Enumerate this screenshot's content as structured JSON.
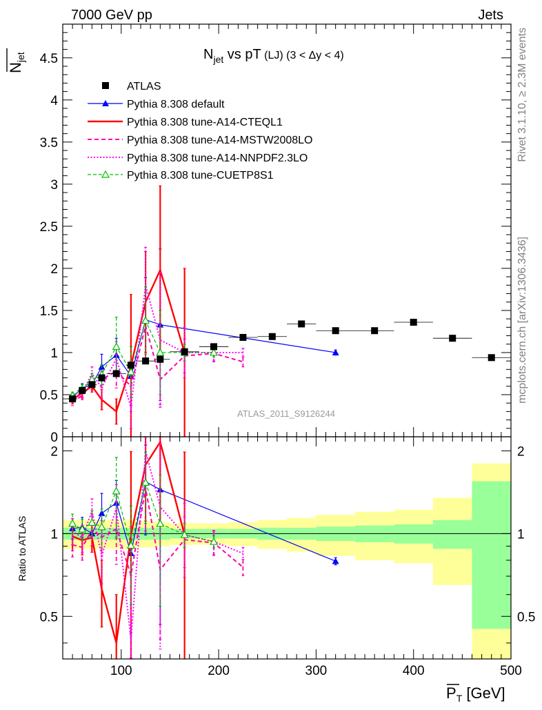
{
  "header": {
    "left": "7000 GeV pp",
    "right": "Jets"
  },
  "side_labels": {
    "rivet": "Rivet 3.1.10, ≥ 2.3M events",
    "mcplots": "mcplots.cern.ch [arXiv:1306.3436]"
  },
  "watermark": "ATLAS_2011_S9126244",
  "chart_data": {
    "type": "scatter",
    "title": {
      "prefix": "N",
      "sub": "jet",
      "rest": " vs pT",
      "extra": " (LJ) (3 < Δy < 4)"
    },
    "ylabel": {
      "main": "N",
      "sub": "jet"
    },
    "xlabel": {
      "main": "P",
      "sub": "T",
      "unit": " [GeV]"
    },
    "ratio_ylabel": "Ratio to ATLAS",
    "xlim": [
      40,
      500
    ],
    "ylim": [
      0,
      4.9
    ],
    "ratio_ylim": [
      0.35,
      2.25
    ],
    "x_ticks": [
      "100",
      "200",
      "300",
      "400",
      "500"
    ],
    "y_ticks": [
      "0",
      "0.5",
      "1",
      "1.5",
      "2",
      "2.5",
      "3",
      "3.5",
      "4",
      "4.5"
    ],
    "ratio_ticks": [
      "0.5",
      "1",
      "2"
    ],
    "ratio_ticks_right": [
      "0.5",
      "1",
      "2"
    ],
    "bins": [
      {
        "lo": 40,
        "hi": 55,
        "x": 50,
        "y": 0.45
      },
      {
        "lo": 55,
        "hi": 65,
        "x": 60,
        "y": 0.55
      },
      {
        "lo": 65,
        "hi": 75,
        "x": 70,
        "y": 0.62
      },
      {
        "lo": 75,
        "hi": 85,
        "x": 80,
        "y": 0.7
      },
      {
        "lo": 85,
        "hi": 105,
        "x": 95,
        "y": 0.75
      },
      {
        "lo": 105,
        "hi": 115,
        "x": 110,
        "y": 0.85
      },
      {
        "lo": 115,
        "hi": 135,
        "x": 125,
        "y": 0.9
      },
      {
        "lo": 135,
        "hi": 150,
        "x": 140,
        "y": 0.92
      },
      {
        "lo": 150,
        "hi": 180,
        "x": 165,
        "y": 1.01
      },
      {
        "lo": 180,
        "hi": 210,
        "x": 195,
        "y": 1.07
      },
      {
        "lo": 210,
        "hi": 240,
        "x": 225,
        "y": 1.18
      },
      {
        "lo": 240,
        "hi": 270,
        "x": 255,
        "y": 1.19
      },
      {
        "lo": 270,
        "hi": 300,
        "x": 285,
        "y": 1.34
      },
      {
        "lo": 300,
        "hi": 340,
        "x": 320,
        "y": 1.26
      },
      {
        "lo": 340,
        "hi": 380,
        "x": 360,
        "y": 1.26
      },
      {
        "lo": 380,
        "hi": 420,
        "x": 400,
        "y": 1.36
      },
      {
        "lo": 420,
        "hi": 460,
        "x": 440,
        "y": 1.17
      },
      {
        "lo": 460,
        "hi": 500,
        "x": 480,
        "y": 0.94
      }
    ],
    "band_inner": [
      0.05,
      0.05,
      0.05,
      0.05,
      0.05,
      0.05,
      0.05,
      0.05,
      0.04,
      0.04,
      0.04,
      0.05,
      0.05,
      0.06,
      0.07,
      0.08,
      0.12,
      0.55
    ],
    "band_outer": [
      0.12,
      0.12,
      0.12,
      0.12,
      0.12,
      0.12,
      0.11,
      0.1,
      0.09,
      0.09,
      0.1,
      0.12,
      0.14,
      0.17,
      0.2,
      0.22,
      0.35,
      0.8
    ],
    "series": [
      {
        "name": "Pythia 8.308 default",
        "color": "#0000ff",
        "width": 1.2,
        "dash": "",
        "marker": "triangle",
        "points": [
          [
            50,
            0.47,
            0.04
          ],
          [
            60,
            0.58,
            0.05
          ],
          [
            70,
            0.62,
            0.06
          ],
          [
            80,
            0.83,
            0.15
          ],
          [
            95,
            0.97,
            0.2
          ],
          [
            110,
            0.72,
            0.35
          ],
          [
            125,
            1.39,
            0.5
          ],
          [
            140,
            1.33,
            0.9
          ],
          [
            320,
            1.0,
            0.03
          ]
        ]
      },
      {
        "name": "Pythia 8.308 tune-A14-CTEQL1",
        "color": "#ff0000",
        "width": 2.4,
        "dash": "",
        "marker": "none",
        "points": [
          [
            50,
            0.44,
            0.05
          ],
          [
            60,
            0.52,
            0.06
          ],
          [
            70,
            0.6,
            0.07
          ],
          [
            80,
            0.44,
            0.12
          ],
          [
            95,
            0.3,
            0.15
          ],
          [
            110,
            0.84,
            0.85
          ],
          [
            125,
            1.6,
            0.6
          ],
          [
            140,
            1.98,
            1.0
          ],
          [
            165,
            1.0,
            1.0
          ]
        ]
      },
      {
        "name": "Pythia 8.308 tune-A14-MSTW2008LO",
        "color": "#ff00aa",
        "width": 2.0,
        "dash": "6,4",
        "marker": "none",
        "points": [
          [
            50,
            0.41,
            0.04
          ],
          [
            60,
            0.49,
            0.05
          ],
          [
            70,
            0.64,
            0.08
          ],
          [
            80,
            0.68,
            0.1
          ],
          [
            95,
            0.78,
            0.2
          ],
          [
            110,
            0.6,
            0.3
          ],
          [
            125,
            1.32,
            0.4
          ],
          [
            140,
            0.68,
            0.3
          ],
          [
            165,
            0.96,
            0.2
          ],
          [
            195,
            0.99,
            0.1
          ],
          [
            225,
            0.89,
            0.06
          ]
        ]
      },
      {
        "name": "Pythia 8.308 tune-A14-NNPDF2.3LO",
        "color": "#ff00ff",
        "width": 2.0,
        "dash": "2,2.5",
        "marker": "none",
        "points": [
          [
            50,
            0.46,
            0.05
          ],
          [
            60,
            0.53,
            0.06
          ],
          [
            70,
            0.75,
            0.08
          ],
          [
            80,
            0.58,
            0.12
          ],
          [
            95,
            0.93,
            0.2
          ],
          [
            110,
            0.35,
            0.25
          ],
          [
            125,
            1.8,
            0.45
          ],
          [
            140,
            1.15,
            0.8
          ],
          [
            165,
            1.0,
            0.3
          ],
          [
            195,
            1.0,
            0.1
          ],
          [
            225,
            1.0,
            0.05
          ]
        ]
      },
      {
        "name": "Pythia 8.308 tune-CUETP8S1",
        "color": "#00bb00",
        "width": 1.2,
        "dash": "5,3",
        "marker": "open-triangle",
        "points": [
          [
            50,
            0.49,
            0.04
          ],
          [
            60,
            0.57,
            0.05
          ],
          [
            70,
            0.68,
            0.07
          ],
          [
            80,
            0.74,
            0.12
          ],
          [
            95,
            1.07,
            0.35
          ],
          [
            110,
            0.77,
            0.3
          ],
          [
            125,
            1.38,
            0.4
          ],
          [
            140,
            1.0,
            0.5
          ],
          [
            165,
            1.0,
            0.1
          ],
          [
            195,
            1.0,
            0.05
          ]
        ]
      }
    ],
    "legend": {
      "atlas": "ATLAS"
    }
  }
}
